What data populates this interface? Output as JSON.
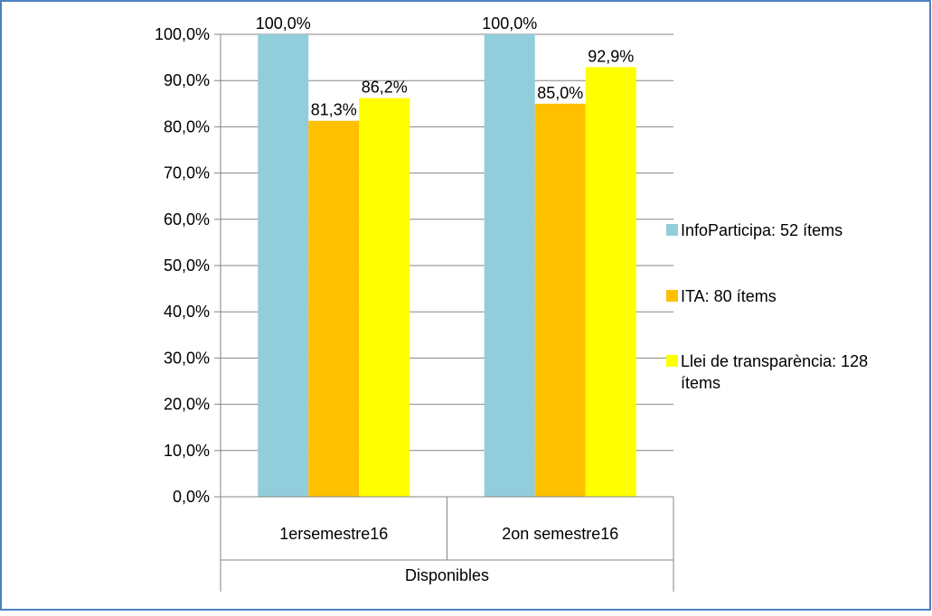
{
  "chart_data": {
    "type": "bar",
    "categories": [
      "1ersemestre16",
      "2on semestre16"
    ],
    "group_label": "Disponibles",
    "series": [
      {
        "name": "InfoParticipa: 52 ítems",
        "values": [
          100.0,
          100.0
        ],
        "labels": [
          "100,0%",
          "100,0%"
        ],
        "color": "#92CDDC"
      },
      {
        "name": "ITA: 80 ítems",
        "values": [
          81.3,
          85.0
        ],
        "labels": [
          "81,3%",
          "85,0%"
        ],
        "color": "#FFC000"
      },
      {
        "name": "Llei de transparència: 128 ítems",
        "legend_lines": [
          "Llei de transparència: 128",
          "ítems"
        ],
        "values": [
          86.2,
          92.9
        ],
        "labels": [
          "86,2%",
          "92,9%"
        ],
        "color": "#FFFF00"
      }
    ],
    "y_ticks": [
      "0,0%",
      "10,0%",
      "20,0%",
      "30,0%",
      "40,0%",
      "50,0%",
      "60,0%",
      "70,0%",
      "80,0%",
      "90,0%",
      "100,0%"
    ],
    "ylim": [
      0,
      100
    ],
    "grid": true,
    "legend_position": "right",
    "title": "",
    "xlabel": "",
    "ylabel": ""
  },
  "colors": {
    "frame_border": "#4F81BD",
    "axis": "#868686",
    "grid": "#868686",
    "text": "#000000"
  }
}
